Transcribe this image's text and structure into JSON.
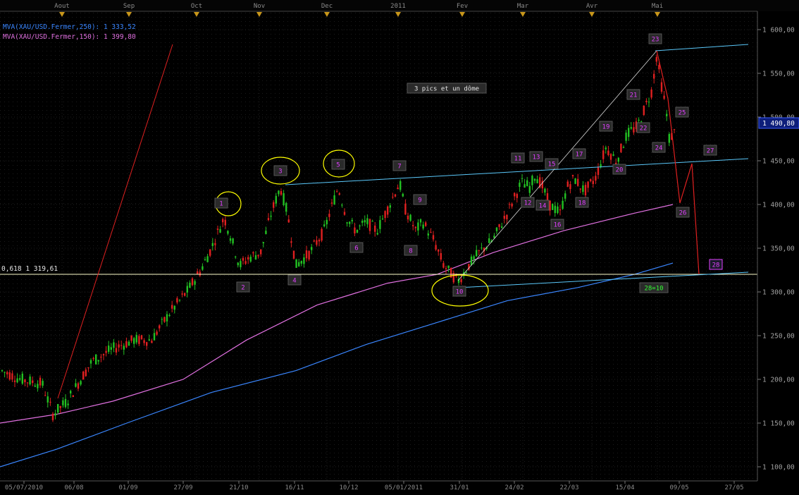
{
  "chart_data": {
    "type": "candlestick",
    "instrument": "XAU/USD",
    "legend": {
      "ma250": "MVA(XAU/USD.Fermer,250): 1 333,52",
      "ma150": "MVA(XAU/USD.Fermer,150): 1 399,80"
    },
    "annotation": "3 pics et un dôme",
    "fib_label": "0,618 1 319,61",
    "last_price": "1 490,80",
    "month_labels": [
      "Aout",
      "Sep",
      "Oct",
      "Nov",
      "Dec",
      "2011",
      "Fev",
      "Mar",
      "Avr",
      "Mai"
    ],
    "x_labels": [
      "05/07/2010",
      "06/08",
      "01/09",
      "27/09",
      "21/10",
      "16/11",
      "10/12",
      "05/01/2011",
      "31/01",
      "24/02",
      "22/03",
      "15/04",
      "09/05",
      "27/05"
    ],
    "y_labels": [
      "1 600,00",
      "1 550,00",
      "1 500,00",
      "1 450,00",
      "1 400,00",
      "1 350,00",
      "1 300,00",
      "1 250,00",
      "1 200,00",
      "1 150,00",
      "1 100,00"
    ],
    "ylim": [
      1100,
      1600
    ],
    "grid": true,
    "wave_points": [
      {
        "label": "1",
        "price": 1395
      },
      {
        "label": "2",
        "price": 1318
      },
      {
        "label": "3",
        "price": 1424
      },
      {
        "label": "4",
        "price": 1326
      },
      {
        "label": "5",
        "price": 1424
      },
      {
        "label": "6",
        "price": 1345
      },
      {
        "label": "7",
        "price": 1432
      },
      {
        "label": "8",
        "price": 1345
      },
      {
        "label": "9",
        "price": 1395
      },
      {
        "label": "10",
        "price": 1308
      },
      {
        "label": "11",
        "price": 1440
      },
      {
        "label": "12",
        "price": 1400
      },
      {
        "label": "13",
        "price": 1440
      },
      {
        "label": "14",
        "price": 1398
      },
      {
        "label": "15",
        "price": 1434
      },
      {
        "label": "16",
        "price": 1380
      },
      {
        "label": "17",
        "price": 1443
      },
      {
        "label": "18",
        "price": 1400
      },
      {
        "label": "19",
        "price": 1485
      },
      {
        "label": "20",
        "price": 1438
      },
      {
        "label": "21",
        "price": 1521
      },
      {
        "label": "22",
        "price": 1484
      },
      {
        "label": "23",
        "price": 1575
      },
      {
        "label": "24",
        "price": 1455
      },
      {
        "label": "25",
        "price": 1500
      },
      {
        "label": "26",
        "price": 1392
      },
      {
        "label": "27",
        "price": 1455
      },
      {
        "label": "28",
        "price": 1320
      },
      {
        "label": "28=10",
        "price": 1308
      }
    ],
    "colors": {
      "up": "#22c022",
      "down": "#e02020",
      "ma250": "#3a86ff",
      "ma150": "#e070e0",
      "trend": "#5ac8fa",
      "fib": "#ffffcc",
      "wave_label": "#e040ff",
      "label_bg": "#2a2a2a"
    }
  }
}
